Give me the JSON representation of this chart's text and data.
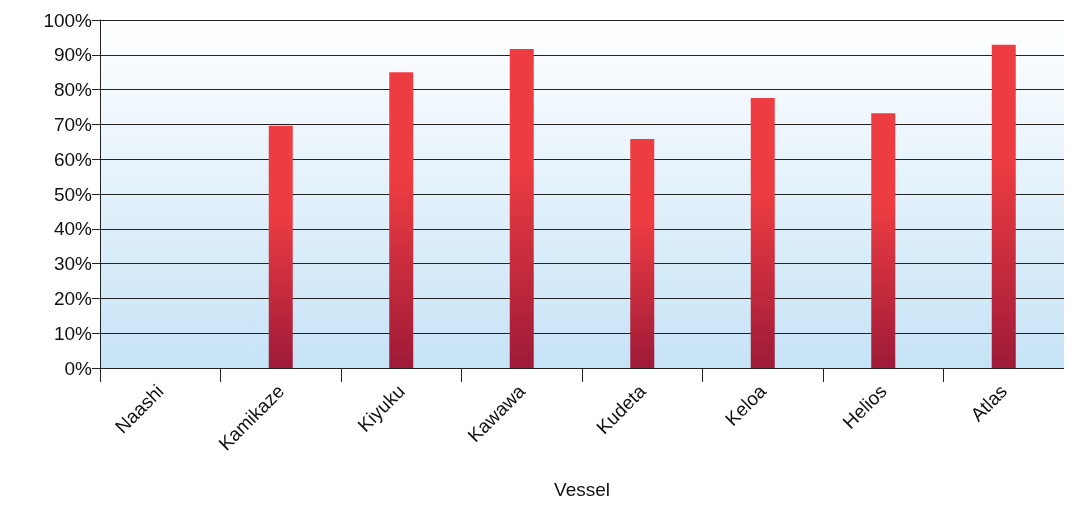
{
  "chart_data": {
    "type": "bar",
    "xlabel": "Vessel",
    "categories": [
      "Naashi",
      "Kamikaze",
      "Kiyuku",
      "Kawawa",
      "Kudeta",
      "Keloa",
      "Helios",
      "Atlas"
    ],
    "values": [
      null,
      69.6,
      85.0,
      91.7,
      65.8,
      77.6,
      73.2,
      92.9
    ],
    "color": "#ee3d42",
    "ylim": [
      0,
      100
    ],
    "yticks": [
      {
        "value": 0,
        "label": "0%"
      },
      {
        "value": 10,
        "label": "10%"
      },
      {
        "value": 20,
        "label": "20%"
      },
      {
        "value": 30,
        "label": "30%"
      },
      {
        "value": 40,
        "label": "40%"
      },
      {
        "value": 50,
        "label": "50%"
      },
      {
        "value": 60,
        "label": "60%"
      },
      {
        "value": 70,
        "label": "70%"
      },
      {
        "value": 80,
        "label": "80%"
      },
      {
        "value": 90,
        "label": "90%"
      },
      {
        "value": 100,
        "label": "100%"
      }
    ],
    "grid": "y"
  }
}
